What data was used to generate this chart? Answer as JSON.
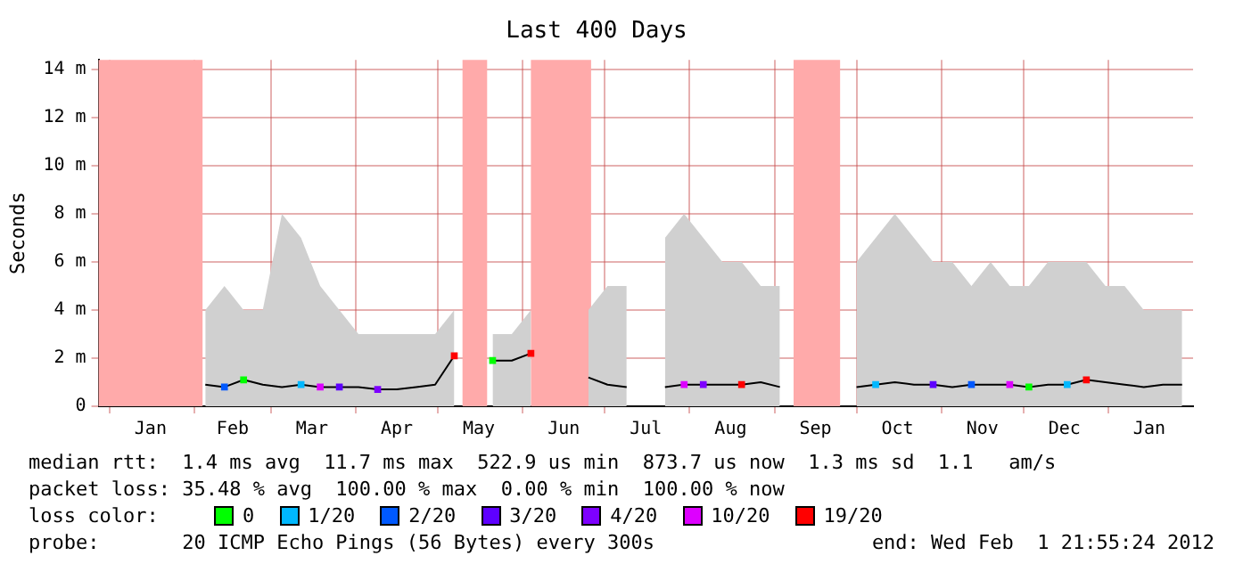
{
  "chart_data": {
    "type": "line",
    "title": "Last 400 Days",
    "ylabel": "Seconds",
    "legend_title": "loss color:",
    "legend": "bottom",
    "grid": true,
    "marker": "none",
    "xlim": [
      "2010-12-28",
      "2012-02-01"
    ],
    "xticks": [
      {
        "value": "2011-01-01",
        "label": null
      },
      {
        "value": "2011-01-16",
        "label": "Jan"
      },
      {
        "value": "2011-02-01",
        "label": null
      },
      {
        "value": "2011-02-15",
        "label": "Feb"
      },
      {
        "value": "2011-03-01",
        "label": null
      },
      {
        "value": "2011-03-16",
        "label": "Mar"
      },
      {
        "value": "2011-04-01",
        "label": null
      },
      {
        "value": "2011-04-16",
        "label": "Apr"
      },
      {
        "value": "2011-05-01",
        "label": null
      },
      {
        "value": "2011-05-16",
        "label": "May"
      },
      {
        "value": "2011-06-01",
        "label": null
      },
      {
        "value": "2011-06-16",
        "label": "Jun"
      },
      {
        "value": "2011-07-01",
        "label": null
      },
      {
        "value": "2011-07-16",
        "label": "Jul"
      },
      {
        "value": "2011-08-01",
        "label": null
      },
      {
        "value": "2011-08-16",
        "label": "Aug"
      },
      {
        "value": "2011-09-01",
        "label": null
      },
      {
        "value": "2011-09-16",
        "label": "Sep"
      },
      {
        "value": "2011-10-01",
        "label": null
      },
      {
        "value": "2011-10-16",
        "label": "Oct"
      },
      {
        "value": "2011-11-01",
        "label": null
      },
      {
        "value": "2011-11-16",
        "label": "Nov"
      },
      {
        "value": "2011-12-01",
        "label": null
      },
      {
        "value": "2011-12-16",
        "label": "Dec"
      },
      {
        "value": "2012-01-01",
        "label": null
      },
      {
        "value": "2012-01-16",
        "label": "Jan"
      }
    ],
    "ylim": [
      0,
      14.4
    ],
    "yticks": [
      {
        "value": 0,
        "label": "0"
      },
      {
        "value": 2,
        "label": "2 m"
      },
      {
        "value": 4,
        "label": "4 m"
      },
      {
        "value": 6,
        "label": "6 m"
      },
      {
        "value": 8,
        "label": "8 m"
      },
      {
        "value": 10,
        "label": "10 m"
      },
      {
        "value": 12,
        "label": "12 m"
      },
      {
        "value": 14,
        "label": "14 m"
      }
    ],
    "bands": [
      {
        "axis": "x",
        "from": "2010-12-28",
        "to": "2011-02-04",
        "color": "#ffaaaa"
      },
      {
        "axis": "x",
        "from": "2011-05-10",
        "to": "2011-05-19",
        "color": "#ffaaaa"
      },
      {
        "axis": "x",
        "from": "2011-06-04",
        "to": "2011-06-26",
        "color": "#ffaaaa"
      },
      {
        "axis": "x",
        "from": "2011-09-08",
        "to": "2011-09-25",
        "color": "#ffaaaa"
      }
    ],
    "series": [
      {
        "type": "area",
        "color": "#d0d0d0",
        "x": [
          "2011-02-05",
          "2011-02-12",
          "2011-02-19",
          "2011-02-26",
          "2011-03-05",
          "2011-03-12",
          "2011-03-19",
          "2011-03-26",
          "2011-04-02",
          "2011-04-09",
          "2011-04-16",
          "2011-04-23",
          "2011-04-30",
          "2011-05-07",
          "2011-05-14",
          "2011-05-21",
          "2011-05-28",
          "2011-06-04",
          "2011-06-11",
          "2011-06-18",
          "2011-06-25",
          "2011-07-02",
          "2011-07-09",
          "2011-07-16",
          "2011-07-23",
          "2011-07-30",
          "2011-08-06",
          "2011-08-13",
          "2011-08-20",
          "2011-08-27",
          "2011-09-03",
          "2011-09-10",
          "2011-09-17",
          "2011-09-24",
          "2011-10-01",
          "2011-10-08",
          "2011-10-15",
          "2011-10-22",
          "2011-10-29",
          "2011-11-05",
          "2011-11-12",
          "2011-11-19",
          "2011-11-26",
          "2011-12-03",
          "2011-12-10",
          "2011-12-17",
          "2011-12-24",
          "2011-12-31",
          "2012-01-07",
          "2012-01-14",
          "2012-01-21",
          "2012-01-28"
        ],
        "values": [
          4,
          5,
          4,
          4,
          8,
          7,
          5,
          4,
          3,
          3,
          3,
          3,
          3,
          4,
          null,
          3,
          3,
          4,
          null,
          null,
          4,
          5,
          5,
          null,
          7,
          8,
          7,
          6,
          6,
          5,
          5,
          null,
          null,
          null,
          6,
          7,
          8,
          7,
          6,
          6,
          5,
          6,
          5,
          5,
          6,
          6,
          6,
          5,
          5,
          4,
          4,
          4
        ]
      },
      {
        "color": "#000000",
        "x": [
          "2011-02-05",
          "2011-02-12",
          "2011-02-19",
          "2011-02-26",
          "2011-03-05",
          "2011-03-12",
          "2011-03-19",
          "2011-03-26",
          "2011-04-02",
          "2011-04-09",
          "2011-04-16",
          "2011-04-23",
          "2011-04-30",
          "2011-05-07",
          "2011-05-14",
          "2011-05-21",
          "2011-05-28",
          "2011-06-04",
          "2011-06-11",
          "2011-06-18",
          "2011-06-25",
          "2011-07-02",
          "2011-07-09",
          "2011-07-16",
          "2011-07-23",
          "2011-07-30",
          "2011-08-06",
          "2011-08-13",
          "2011-08-20",
          "2011-08-27",
          "2011-09-03",
          "2011-09-10",
          "2011-09-17",
          "2011-09-24",
          "2011-10-01",
          "2011-10-08",
          "2011-10-15",
          "2011-10-22",
          "2011-10-29",
          "2011-11-05",
          "2011-11-12",
          "2011-11-19",
          "2011-11-26",
          "2011-12-03",
          "2011-12-10",
          "2011-12-17",
          "2011-12-24",
          "2011-12-31",
          "2012-01-07",
          "2012-01-14",
          "2012-01-21",
          "2012-01-28"
        ],
        "values": [
          0.9,
          0.8,
          1.1,
          0.9,
          0.8,
          0.9,
          0.8,
          0.8,
          0.8,
          0.7,
          0.7,
          0.8,
          0.9,
          2.1,
          null,
          1.9,
          1.9,
          2.2,
          null,
          null,
          1.2,
          0.9,
          0.8,
          null,
          0.8,
          0.9,
          0.9,
          0.9,
          0.9,
          1.0,
          0.8,
          null,
          null,
          null,
          0.8,
          0.9,
          1.0,
          0.9,
          0.9,
          0.8,
          0.9,
          0.9,
          0.9,
          0.8,
          0.9,
          0.9,
          1.1,
          1.0,
          0.9,
          0.8,
          0.9,
          0.9
        ]
      },
      {
        "type": "scatter",
        "marker": "square",
        "name": "0",
        "color": "#00ff00",
        "x": [
          "2011-02-19",
          "2011-05-21",
          "2011-12-03"
        ],
        "values": [
          1.1,
          1.9,
          0.8
        ]
      },
      {
        "type": "scatter",
        "marker": "square",
        "name": "1/20",
        "color": "#00b8ff",
        "x": [
          "2011-03-12",
          "2011-10-08",
          "2011-12-17"
        ],
        "values": [
          0.9,
          0.9,
          0.9
        ]
      },
      {
        "type": "scatter",
        "marker": "square",
        "name": "2/20",
        "color": "#0059ff",
        "x": [
          "2011-02-12",
          "2011-11-12"
        ],
        "values": [
          0.8,
          0.9
        ]
      },
      {
        "type": "scatter",
        "marker": "square",
        "name": "3/20",
        "color": "#5e00ff",
        "x": [
          "2011-03-26",
          "2011-10-29"
        ],
        "values": [
          0.8,
          0.9
        ]
      },
      {
        "type": "scatter",
        "marker": "square",
        "name": "4/20",
        "color": "#7e00ff",
        "x": [
          "2011-04-09",
          "2011-08-06"
        ],
        "values": [
          0.7,
          0.9
        ]
      },
      {
        "type": "scatter",
        "marker": "square",
        "name": "10/20",
        "color": "#dd00ff",
        "x": [
          "2011-03-19",
          "2011-07-30",
          "2011-11-26"
        ],
        "values": [
          0.8,
          0.9,
          0.9
        ]
      },
      {
        "type": "scatter",
        "marker": "square",
        "name": "19/20",
        "color": "#ff0000",
        "x": [
          "2011-05-07",
          "2011-06-04",
          "2011-08-20",
          "2011-12-24"
        ],
        "values": [
          2.1,
          2.2,
          0.9,
          1.1
        ]
      }
    ],
    "annotations": [
      "median rtt:  1.4 ms avg  11.7 ms max  522.9 us min  873.7 us now  1.3 ms sd  1.1   am/s",
      "packet loss: 35.48 % avg  100.00 % max  0.00 % min  100.00 % now",
      "probe:       20 ICMP Echo Pings (56 Bytes) every 300s",
      "end: Wed Feb  1 21:55:24 2012"
    ]
  }
}
